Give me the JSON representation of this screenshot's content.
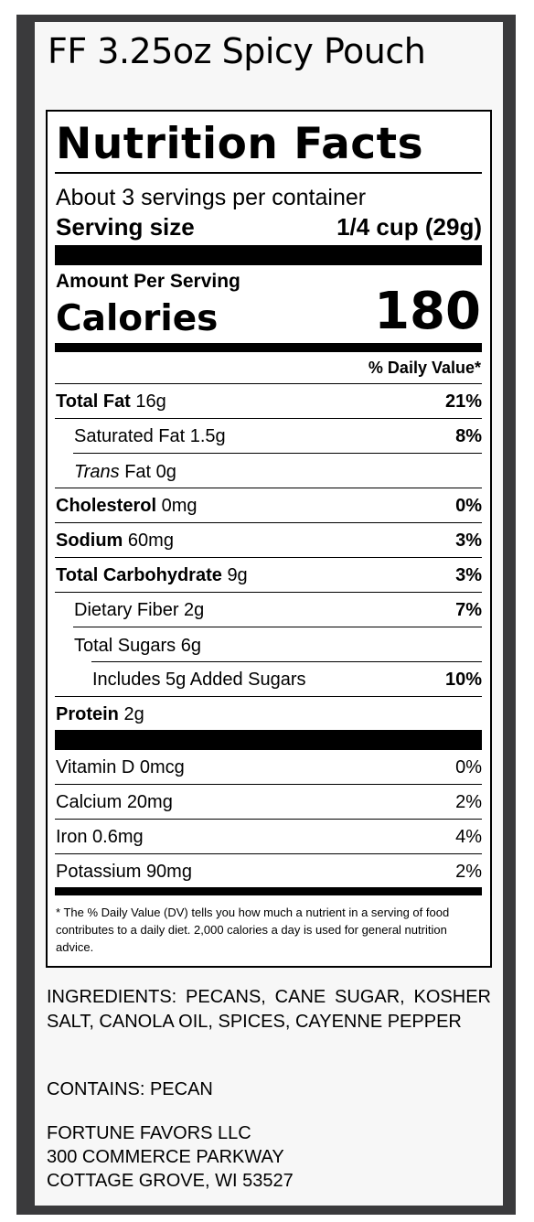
{
  "product_title": "FF 3.25oz Spicy Pouch",
  "label": {
    "title": "Nutrition Facts",
    "servings_per_container": "About 3 servings per container",
    "serving_size_label": "Serving size",
    "serving_size_value": "1/4 cup (29g)",
    "amount_per_serving": "Amount Per Serving",
    "calories_label": "Calories",
    "calories_value": "180",
    "dv_header": "% Daily Value*",
    "nutrients": [
      {
        "name": "Total Fat",
        "amount": "16g",
        "dv": "21%"
      },
      {
        "name": "Saturated Fat",
        "amount": "1.5g",
        "dv": "8%"
      },
      {
        "name_italic": "Trans",
        "name": "Fat",
        "amount": "0g",
        "dv": ""
      },
      {
        "name": "Cholesterol",
        "amount": "0mg",
        "dv": "0%"
      },
      {
        "name": "Sodium",
        "amount": "60mg",
        "dv": "3%"
      },
      {
        "name": "Total Carbohydrate",
        "amount": "9g",
        "dv": "3%"
      },
      {
        "name": "Dietary Fiber",
        "amount": "2g",
        "dv": "7%"
      },
      {
        "name": "Total Sugars",
        "amount": "6g",
        "dv": ""
      },
      {
        "name": "Includes 5g Added Sugars",
        "amount": "",
        "dv": "10%"
      },
      {
        "name": "Protein",
        "amount": "2g",
        "dv": ""
      }
    ],
    "vitamins": [
      {
        "name": "Vitamin D",
        "amount": "0mcg",
        "dv": "0%"
      },
      {
        "name": "Calcium",
        "amount": "20mg",
        "dv": "2%"
      },
      {
        "name": "Iron",
        "amount": "0.6mg",
        "dv": "4%"
      },
      {
        "name": "Potassium",
        "amount": "90mg",
        "dv": "2%"
      }
    ],
    "footnote_star": "*",
    "footnote": "The % Daily Value (DV) tells you how much a nutrient in a serving of food contributes to a daily diet. 2,000 calories a day is used for general nutrition advice."
  },
  "ingredients": "INGREDIENTS: PECANS, CANE SUGAR, KOSHER SALT, CANOLA OIL, SPICES, CAYENNE PEPPER",
  "contains": "CONTAINS: PECAN",
  "address": {
    "line1": "FORTUNE FAVORS LLC",
    "line2": "300 COMMERCE PARKWAY",
    "line3": "COTTAGE GROVE, WI 53527"
  }
}
